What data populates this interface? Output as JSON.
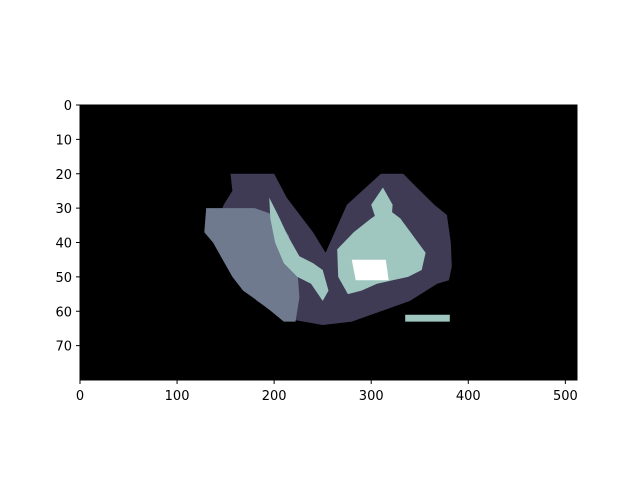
{
  "chart_data": {
    "type": "heatmap",
    "title": "",
    "xlabel": "",
    "ylabel": "",
    "xlim": [
      0,
      512
    ],
    "ylim": [
      80,
      0
    ],
    "image_shape": [
      80,
      512
    ],
    "xticks": [
      0,
      100,
      200,
      300,
      400,
      500
    ],
    "yticks": [
      0,
      10,
      20,
      30,
      40,
      50,
      60,
      70
    ],
    "xtick_labels": [
      "0",
      "100",
      "200",
      "300",
      "400",
      "500"
    ],
    "ytick_labels": [
      "0",
      "10",
      "20",
      "30",
      "40",
      "50",
      "60",
      "70"
    ],
    "grid": false,
    "colors": {
      "background": "#000000",
      "dark_region": "#3f3b55",
      "slate_region": "#707a8e",
      "light_region": "#9fc7c0",
      "highlight": "#ffffff"
    },
    "regions": [
      {
        "label": "dark region",
        "color": "#3f3b55",
        "polygon": [
          [
            155,
            20
          ],
          [
            200,
            20
          ],
          [
            213,
            27
          ],
          [
            240,
            37
          ],
          [
            253,
            43
          ],
          [
            275,
            29
          ],
          [
            310,
            20
          ],
          [
            333,
            20
          ],
          [
            347,
            24
          ],
          [
            365,
            29
          ],
          [
            378,
            32
          ],
          [
            382,
            40
          ],
          [
            383,
            47
          ],
          [
            380,
            51
          ],
          [
            368,
            52
          ],
          [
            340,
            57
          ],
          [
            310,
            60
          ],
          [
            280,
            63
          ],
          [
            250,
            64
          ],
          [
            210,
            62
          ],
          [
            182,
            57
          ],
          [
            170,
            53
          ],
          [
            158,
            48
          ],
          [
            148,
            42
          ],
          [
            140,
            35
          ],
          [
            148,
            29
          ],
          [
            157,
            25
          ]
        ]
      },
      {
        "label": "slate region",
        "color": "#707a8e",
        "polygon": [
          [
            130,
            30
          ],
          [
            180,
            30
          ],
          [
            200,
            32
          ],
          [
            215,
            38
          ],
          [
            224,
            48
          ],
          [
            226,
            56
          ],
          [
            222,
            63
          ],
          [
            210,
            63
          ],
          [
            197,
            60
          ],
          [
            183,
            57
          ],
          [
            168,
            54
          ],
          [
            157,
            50
          ],
          [
            147,
            45
          ],
          [
            137,
            40
          ],
          [
            128,
            37
          ]
        ]
      },
      {
        "label": "light streak",
        "color": "#9fc7c0",
        "polygon": [
          [
            195,
            27
          ],
          [
            204,
            32
          ],
          [
            214,
            38
          ],
          [
            226,
            44
          ],
          [
            240,
            46
          ],
          [
            250,
            48
          ],
          [
            256,
            54
          ],
          [
            250,
            57
          ],
          [
            238,
            52
          ],
          [
            224,
            50
          ],
          [
            210,
            46
          ],
          [
            201,
            40
          ],
          [
            196,
            33
          ]
        ]
      },
      {
        "label": "light streak",
        "color": "#9fc7c0",
        "polygon": [
          [
            265,
            42
          ],
          [
            282,
            37
          ],
          [
            300,
            33
          ],
          [
            316,
            30
          ],
          [
            330,
            33
          ],
          [
            343,
            38
          ],
          [
            356,
            43
          ],
          [
            352,
            48
          ],
          [
            338,
            50
          ],
          [
            322,
            51
          ],
          [
            306,
            52
          ],
          [
            290,
            54
          ],
          [
            276,
            55
          ],
          [
            266,
            50
          ]
        ]
      },
      {
        "label": "light streak",
        "color": "#9fc7c0",
        "polygon": [
          [
            300,
            29
          ],
          [
            312,
            24
          ],
          [
            322,
            29
          ],
          [
            320,
            37
          ],
          [
            308,
            36
          ]
        ]
      },
      {
        "label": "light strip",
        "color": "#9fc7c0",
        "polygon": [
          [
            335,
            61
          ],
          [
            381,
            61
          ],
          [
            381,
            63
          ],
          [
            335,
            63
          ]
        ]
      },
      {
        "label": "bright patch",
        "color": "#ffffff",
        "polygon": [
          [
            280,
            45
          ],
          [
            315,
            45
          ],
          [
            318,
            51
          ],
          [
            284,
            51
          ]
        ]
      }
    ]
  }
}
